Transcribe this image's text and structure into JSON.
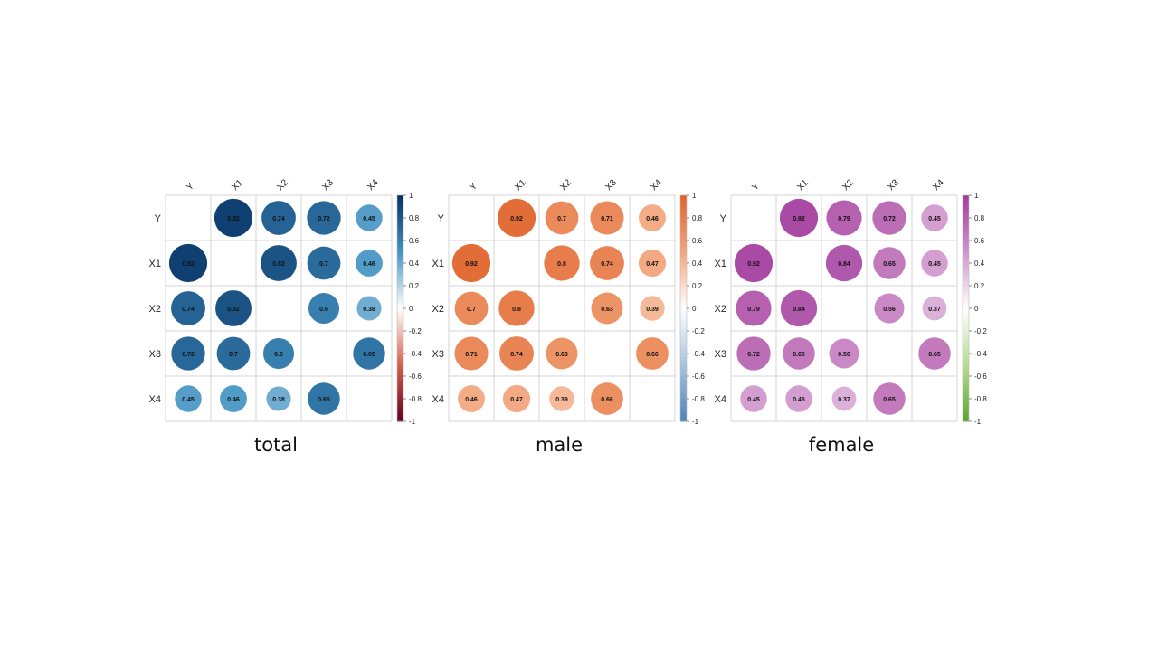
{
  "chart_data": [
    {
      "type": "heatmap",
      "style": "correlation-circles",
      "title": "total",
      "variables": [
        "Y",
        "X1",
        "X2",
        "X3",
        "X4"
      ],
      "matrix": [
        [
          null,
          0.92,
          0.74,
          0.72,
          0.45
        ],
        [
          0.92,
          null,
          0.82,
          0.7,
          0.46
        ],
        [
          0.74,
          0.82,
          null,
          0.6,
          0.38
        ],
        [
          0.72,
          0.7,
          0.6,
          null,
          0.65
        ],
        [
          0.45,
          0.46,
          0.38,
          0.65,
          null
        ]
      ],
      "colorbar": {
        "range": [
          -1,
          1
        ],
        "ticks": [
          "1",
          "0.8",
          "0.6",
          "0.4",
          "0.2",
          "0",
          "-0.2",
          "-0.4",
          "-0.6",
          "-0.8",
          "-1"
        ],
        "low_color": "#67001f",
        "mid_color": "#ffffff",
        "high_color": "#053061"
      },
      "colors": {
        "neg_end": "#67001f",
        "neg_mid": "#d6604d",
        "pos_mid": "#4393c3",
        "pos_end": "#053061"
      }
    },
    {
      "type": "heatmap",
      "style": "correlation-circles",
      "title": "male",
      "variables": [
        "Y",
        "X1",
        "X2",
        "X3",
        "X4"
      ],
      "matrix": [
        [
          null,
          0.92,
          0.7,
          0.71,
          0.46
        ],
        [
          0.92,
          null,
          0.8,
          0.74,
          0.47
        ],
        [
          0.7,
          0.8,
          null,
          0.63,
          0.39
        ],
        [
          0.71,
          0.74,
          0.63,
          null,
          0.66
        ],
        [
          0.46,
          0.47,
          0.39,
          0.66,
          null
        ]
      ],
      "colorbar": {
        "range": [
          -1,
          1
        ],
        "ticks": [
          "1",
          "0.8",
          "0.6",
          "0.4",
          "0.2",
          "0",
          "-0.2",
          "-0.4",
          "-0.6",
          "-0.8",
          "-1"
        ],
        "low_color": "#5e8fbf",
        "mid_color": "#ffffff",
        "high_color": "#e0622a"
      },
      "colors": {
        "neg_end": "#4f83b8",
        "neg_mid": "#a7c3dd",
        "pos_mid": "#f2a57c",
        "pos_end": "#e0622a"
      }
    },
    {
      "type": "heatmap",
      "style": "correlation-circles",
      "title": "female",
      "variables": [
        "Y",
        "X1",
        "X2",
        "X3",
        "X4"
      ],
      "matrix": [
        [
          null,
          0.92,
          0.79,
          0.72,
          0.45
        ],
        [
          0.92,
          null,
          0.84,
          0.65,
          0.45
        ],
        [
          0.79,
          0.84,
          null,
          0.56,
          0.37
        ],
        [
          0.72,
          0.65,
          0.56,
          null,
          0.65
        ],
        [
          0.45,
          0.45,
          0.37,
          0.65,
          null
        ]
      ],
      "colorbar": {
        "range": [
          -1,
          1
        ],
        "ticks": [
          "1",
          "0.8",
          "0.6",
          "0.4",
          "0.2",
          "0",
          "-0.2",
          "-0.4",
          "-0.6",
          "-0.8",
          "-1"
        ],
        "low_color": "#6fb544",
        "mid_color": "#ffffff",
        "high_color": "#a23c9c"
      },
      "colors": {
        "neg_end": "#5aa532",
        "neg_mid": "#b5dc92",
        "pos_mid": "#cf94cb",
        "pos_end": "#a23c9c"
      }
    }
  ]
}
